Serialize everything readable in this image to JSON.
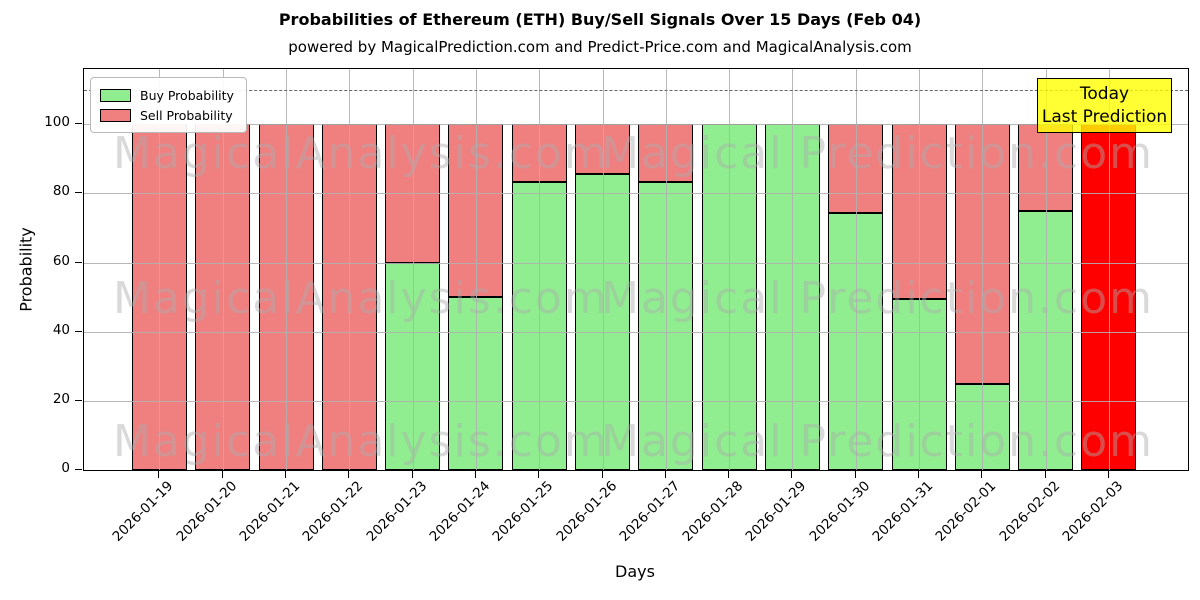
{
  "title": "Probabilities of Ethereum (ETH) Buy/Sell Signals Over 15 Days (Feb 04)",
  "subtitle": "powered by MagicalPrediction.com and Predict-Price.com and MagicalAnalysis.com",
  "axes": {
    "x_label": "Days",
    "y_label": "Probability",
    "y_ticks": [
      0,
      20,
      40,
      60,
      80,
      100
    ],
    "ylim": [
      0,
      116
    ],
    "dashed_line_y": 110,
    "grid": true
  },
  "legend": {
    "position": "upper-left",
    "items": [
      {
        "label": "Buy Probability",
        "color": "#90ee90"
      },
      {
        "label": "Sell Probability",
        "color": "#f08080"
      }
    ]
  },
  "annotation": {
    "line1": "Today",
    "line2": "Last Prediction",
    "bg_color": "#ffff00"
  },
  "watermarks": {
    "left_text": "MagicalAnalysis.com",
    "right_text": "Magical Prediction.com"
  },
  "colors": {
    "buy": "#90ee90",
    "sell": "#f08080",
    "today_bar": "#ff0000",
    "bar_edge": "#000000",
    "grid": "#b0b0b0",
    "dashed_line": "#666666",
    "annotation_bg": "#ffff00"
  },
  "chart_data": {
    "type": "bar",
    "stacked": true,
    "title": "Probabilities of Ethereum (ETH) Buy/Sell Signals Over 15 Days (Feb 04)",
    "xlabel": "Days",
    "ylabel": "Probability",
    "ylim": [
      0,
      116
    ],
    "grid": true,
    "legend_position": "upper-left",
    "categories": [
      "2026-01-19",
      "2026-01-20",
      "2026-01-21",
      "2026-01-22",
      "2026-01-23",
      "2026-01-24",
      "2026-01-25",
      "2026-01-26",
      "2026-01-27",
      "2026-01-28",
      "2026-01-29",
      "2026-01-30",
      "2026-01-31",
      "2026-02-01",
      "2026-02-02",
      "2026-02-03"
    ],
    "series": [
      {
        "name": "Buy Probability",
        "color": "#90ee90",
        "values": [
          0,
          0,
          0,
          0,
          60,
          50,
          83.3,
          85.7,
          83.3,
          100,
          100,
          74.3,
          49.5,
          25,
          75,
          0
        ]
      },
      {
        "name": "Sell Probability",
        "color": "#f08080",
        "values": [
          100,
          100,
          100,
          100,
          40,
          50,
          16.7,
          14.3,
          16.7,
          0,
          0,
          25.7,
          50.5,
          75,
          25,
          0
        ]
      }
    ],
    "today_bar": {
      "index": 15,
      "category": "2026-02-03",
      "value": 100,
      "color": "#ff0000",
      "meaning": "Last Prediction"
    }
  }
}
